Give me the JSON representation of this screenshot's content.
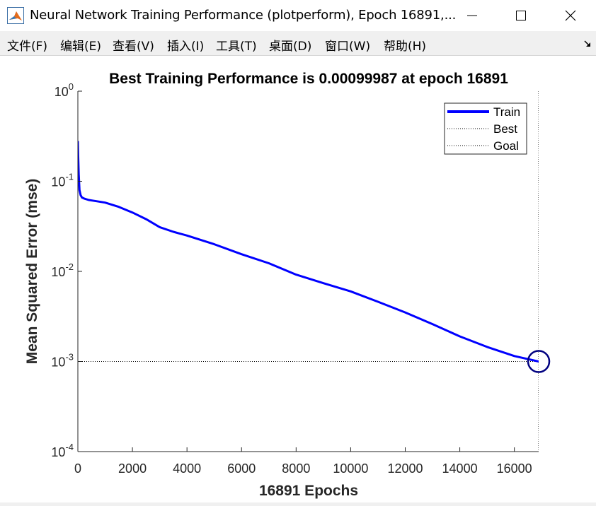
{
  "window": {
    "title": "Neural Network Training Performance (plotperform), Epoch 16891,..."
  },
  "menu": [
    "文件(F)",
    "编辑(E)",
    "查看(V)",
    "插入(I)",
    "工具(T)",
    "桌面(D)",
    "窗口(W)",
    "帮助(H)"
  ],
  "icons": {
    "app": "matlab-icon",
    "minimize": "minimize-icon",
    "maximize": "maximize-icon",
    "close": "close-icon",
    "dock": "dock-arrow-icon"
  },
  "chart_data": {
    "type": "line",
    "title": "Best Training Performance is 0.00099987 at epoch 16891",
    "xlabel": "16891 Epochs",
    "ylabel": "Mean Squared Error  (mse)",
    "xlim": [
      0,
      16891
    ],
    "ylim": [
      0.0001,
      1
    ],
    "yscale": "log",
    "xticks": [
      0,
      2000,
      4000,
      6000,
      8000,
      10000,
      12000,
      14000,
      16000
    ],
    "yticks": [
      {
        "value": 1,
        "base": "10",
        "exp": "0"
      },
      {
        "value": 0.1,
        "base": "10",
        "exp": "-1"
      },
      {
        "value": 0.01,
        "base": "10",
        "exp": "-2"
      },
      {
        "value": 0.001,
        "base": "10",
        "exp": "-3"
      },
      {
        "value": 0.0001,
        "base": "10",
        "exp": "-4"
      }
    ],
    "grid": false,
    "legend_position": "top-right",
    "legend": [
      "Train",
      "Best",
      "Goal"
    ],
    "series": [
      {
        "name": "Train",
        "color": "#0000ff",
        "x": [
          0,
          10,
          30,
          60,
          100,
          150,
          250,
          400,
          700,
          1000,
          1500,
          2000,
          2500,
          3000,
          3500,
          4000,
          5000,
          6000,
          7000,
          8000,
          9000,
          10000,
          11000,
          12000,
          13000,
          14000,
          15000,
          16000,
          16891
        ],
        "y": [
          0.28,
          0.2,
          0.12,
          0.08,
          0.07,
          0.066,
          0.064,
          0.062,
          0.06,
          0.058,
          0.052,
          0.045,
          0.038,
          0.031,
          0.0275,
          0.025,
          0.02,
          0.0155,
          0.0123,
          0.0092,
          0.0074,
          0.006,
          0.0046,
          0.0035,
          0.0026,
          0.0019,
          0.00145,
          0.00115,
          0.00099987
        ]
      },
      {
        "name": "Best",
        "color": "#000000",
        "style": "dotted",
        "x_value": 16891
      },
      {
        "name": "Goal",
        "color": "#000000",
        "style": "dotted",
        "y_value": 0.001
      }
    ],
    "best_point": {
      "x": 16891,
      "y": 0.00099987,
      "color": "#000080"
    }
  }
}
